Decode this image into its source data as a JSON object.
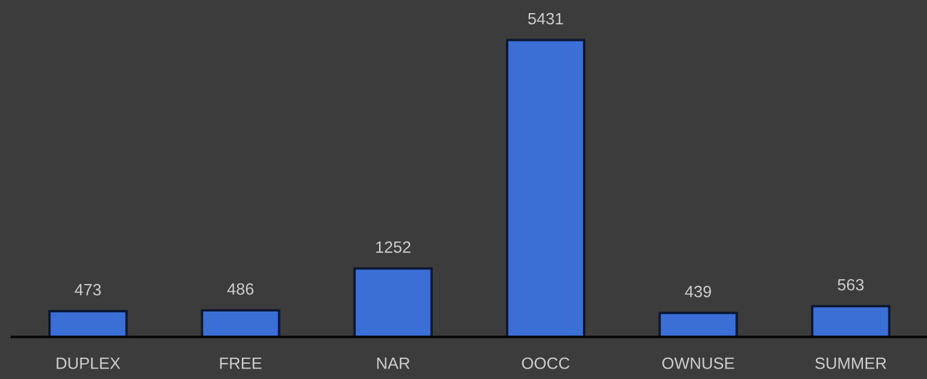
{
  "chart_data": {
    "type": "bar",
    "categories": [
      "DUPLEX",
      "FREE",
      "NAR",
      "OOCC",
      "OWNUSE",
      "SUMMER"
    ],
    "values": [
      473,
      486,
      1252,
      5431,
      439,
      563
    ],
    "color": "#3b6fd6",
    "data_labels": true
  }
}
